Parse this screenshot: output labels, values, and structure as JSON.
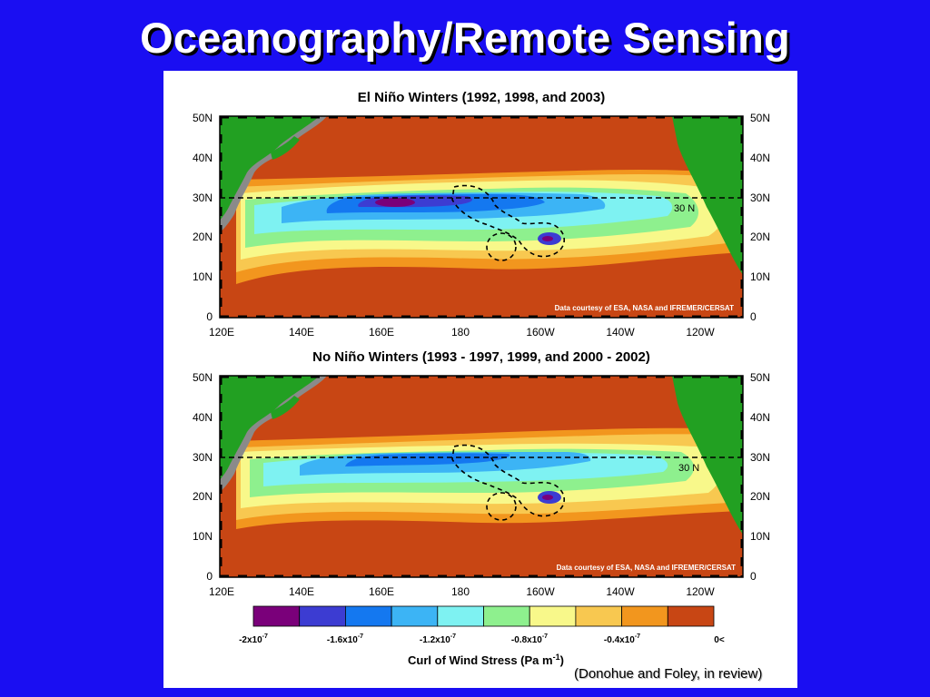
{
  "slide": {
    "title": "Oceanography/Remote Sensing",
    "citation": "(Donohue and Foley, in review)"
  },
  "panels": [
    {
      "title": "El Niño Winters (1992, 1998, and 2003)",
      "latitude_line_label": "30 N",
      "credit": "Data courtesy of ESA, NASA and IFREMER/CERSAT"
    },
    {
      "title": "No Niño Winters (1993 - 1997, 1999, and 2000 - 2002)",
      "latitude_line_label": "30 N",
      "credit": "Data courtesy of ESA, NASA and IFREMER/CERSAT"
    }
  ],
  "axes": {
    "lat_ticks": [
      "50N",
      "40N",
      "30N",
      "20N",
      "10N",
      "0"
    ],
    "lon_ticks": [
      "120E",
      "140E",
      "160E",
      "180",
      "160W",
      "140W",
      "120W"
    ]
  },
  "colorbar": {
    "title": "Curl of Wind Stress (Pa m",
    "title_sup": "-1",
    "title_end": ")",
    "colors": [
      "#7a007a",
      "#3c3cd2",
      "#1478f0",
      "#3cb4f5",
      "#7ef2f2",
      "#8ef08e",
      "#f8f88a",
      "#f8c850",
      "#f2961e",
      "#c84614"
    ],
    "labels": [
      {
        "base": "-2x10",
        "exp": "-7"
      },
      {
        "base": "-1.6x10",
        "exp": "-7"
      },
      {
        "base": "-1.2x10",
        "exp": "-7"
      },
      {
        "base": "-0.8x10",
        "exp": "-7"
      },
      {
        "base": "-0.4x10",
        "exp": "-7"
      },
      {
        "base": "0<",
        "exp": ""
      }
    ]
  },
  "colors": {
    "background": "#1a0ef2",
    "ocean_positive": "#c84614",
    "land": "#22a022",
    "coast_shade": "#8a8a8a"
  }
}
